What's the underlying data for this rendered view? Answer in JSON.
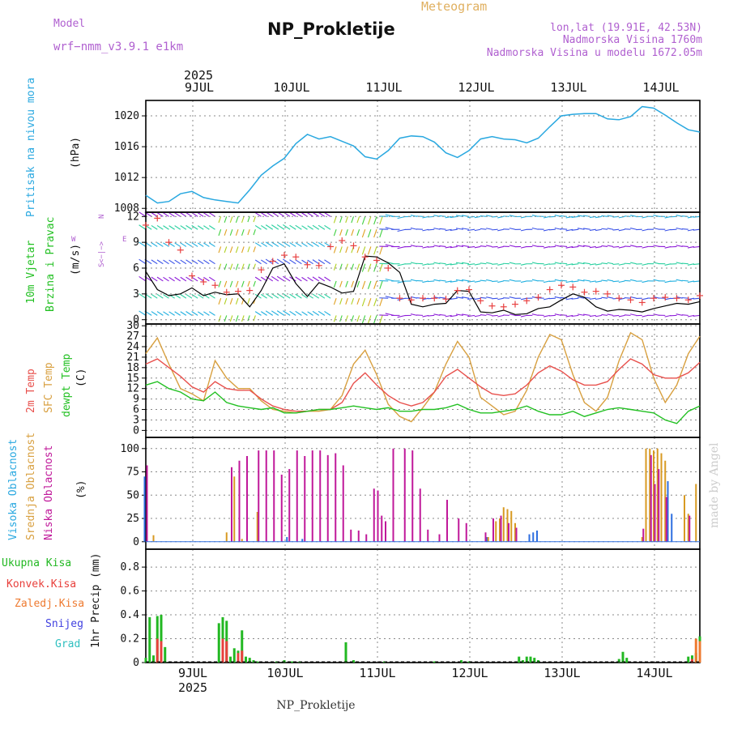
{
  "header": {
    "model_label": "Model",
    "model_name": "wrf−nmm_v3.9.1 e1km",
    "product": "Meteogram",
    "station": "NP_Prokletije",
    "lonlat": "lon,lat (19.91E, 42.53N)",
    "elevation": "Nadmorska Visina 1760m",
    "model_elevation": "Nadmorska Visina u modelu 1672.05m",
    "footer_station": "NP_Prokletije",
    "credit": "made by Angel"
  },
  "colors": {
    "pressure": "#29a8e0",
    "temp2m": "#e8504c",
    "sfc": "#d8a040",
    "dewpt": "#22c022",
    "high_cloud": "#2d6ee0",
    "mid_cloud": "#d89a22",
    "low_cloud": "#c0189a",
    "total_precip": "#22b822",
    "conv_precip": "#e8403c",
    "frozen_precip": "#ee7a30",
    "snow": "#4040e0",
    "graupel": "#30c0c0",
    "model_text": "#b060d0",
    "product_text": "#e0b060",
    "wind_gust_marker": "#e84040",
    "wind_speed_line": "#000000"
  },
  "time_axis": {
    "year_top": "2025",
    "year_bottom": "2025",
    "days": [
      "9JUL",
      "10JUL",
      "11JUL",
      "12JUL",
      "13JUL",
      "14JUL"
    ],
    "start": "8JUL 12UTC",
    "end": "14JUL 12UTC"
  },
  "panels": {
    "pressure": {
      "label": "Pritisak na nivou mora",
      "unit": "(hPa)",
      "ticks": [
        "1008",
        "1012",
        "1016",
        "1020"
      ]
    },
    "wind": {
      "label1": "10m Vjetar",
      "label2": "Brzina i Pravac",
      "unit": "(m/s)",
      "ticks": [
        "0",
        "3",
        "6",
        "9",
        "12"
      ],
      "compass": {
        "n": "N",
        "s": "S",
        "e": "E",
        "w": "W",
        "arrow": "<−|−>"
      }
    },
    "temperature": {
      "label1": "2m Temp",
      "label2": "SFC Temp",
      "label3": "dewpt Temp",
      "unit": "(C)",
      "ticks": [
        "0",
        "3",
        "6",
        "9",
        "12",
        "15",
        "18",
        "21",
        "24",
        "27",
        "30"
      ]
    },
    "cloud": {
      "label1": "Visoka Oblacnost",
      "label2": "Srednja Oblacnost",
      "label3": "Niska Oblacnost",
      "unit": "(%)",
      "ticks": [
        "0",
        "25",
        "50",
        "75",
        "100"
      ]
    },
    "precip": {
      "labels": [
        "Ukupna Kisa",
        "Konvek.Kisa",
        "Zaledj.Kisa",
        "Snijeg",
        "Grad"
      ],
      "unit": "1hr Precip (mm)",
      "ticks": [
        "0",
        "0.2",
        "0.4",
        "0.6",
        "0.8"
      ]
    }
  },
  "chart_data": [
    {
      "type": "line",
      "title": "Pritisak na nivou mora",
      "ylabel": "(hPa)",
      "x_hours": [
        0,
        3,
        6,
        9,
        12,
        15,
        18,
        21,
        24,
        27,
        30,
        33,
        36,
        39,
        42,
        45,
        48,
        51,
        54,
        57,
        60,
        63,
        66,
        69,
        72,
        75,
        78,
        81,
        84,
        87,
        90,
        93,
        96,
        99,
        102,
        105,
        108,
        111,
        114,
        117,
        120,
        123,
        126,
        129,
        132,
        135,
        138,
        141,
        144
      ],
      "series": [
        {
          "name": "Pritisak na nivou mora",
          "values": [
            1009.7,
            1008.7,
            1008.9,
            1009.9,
            1010.2,
            1009.4,
            1009.1,
            1008.9,
            1008.7,
            1010.4,
            1012.3,
            1013.5,
            1014.5,
            1016.4,
            1017.6,
            1017.0,
            1017.3,
            1016.7,
            1016.1,
            1014.7,
            1014.4,
            1015.5,
            1017.1,
            1017.4,
            1017.3,
            1016.6,
            1015.2,
            1014.6,
            1015.5,
            1017.0,
            1017.3,
            1017.0,
            1016.9,
            1016.5,
            1017.1,
            1018.6,
            1020.0,
            1020.2,
            1020.3,
            1020.3,
            1019.6,
            1019.5,
            1019.9,
            1021.2,
            1021.0,
            1020.1,
            1019.1,
            1018.2,
            1017.9
          ]
        }
      ],
      "ylim": [
        1007.5,
        1022
      ]
    },
    {
      "type": "line",
      "title": "10m Vjetar Brzina i Pravac",
      "ylabel": "(m/s)",
      "x_hours": [
        0,
        3,
        6,
        9,
        12,
        15,
        18,
        21,
        24,
        27,
        30,
        33,
        36,
        39,
        42,
        45,
        48,
        51,
        54,
        57,
        60,
        63,
        66,
        69,
        72,
        75,
        78,
        81,
        84,
        87,
        90,
        93,
        96,
        99,
        102,
        105,
        108,
        111,
        114,
        117,
        120,
        123,
        126,
        129,
        132,
        135,
        138,
        141,
        144
      ],
      "series": [
        {
          "name": "speed",
          "values": [
            5.6,
            3.5,
            2.8,
            3.0,
            3.7,
            2.8,
            3.2,
            2.9,
            3.0,
            1.5,
            3.4,
            6.0,
            6.5,
            4.2,
            2.7,
            4.3,
            3.8,
            3.1,
            3.3,
            7.4,
            7.3,
            6.6,
            5.5,
            1.8,
            1.5,
            1.8,
            1.9,
            3.4,
            3.3,
            0.9,
            0.8,
            1.1,
            0.6,
            0.7,
            1.3,
            1.5,
            2.3,
            3.0,
            2.6,
            1.5,
            1.0,
            1.2,
            1.1,
            0.9,
            1.3,
            1.6,
            1.9,
            1.8,
            2.1
          ]
        },
        {
          "name": "gust",
          "values": [
            11.0,
            11.8,
            9.0,
            8.1,
            5.1,
            4.4,
            4.0,
            3.2,
            3.3,
            3.4,
            5.8,
            6.8,
            7.5,
            7.3,
            6.4,
            6.3,
            8.5,
            9.2,
            8.6,
            7.3,
            6.9,
            6.0,
            2.5,
            2.3,
            2.5,
            2.5,
            2.4,
            3.4,
            3.5,
            2.2,
            1.6,
            1.5,
            1.8,
            2.2,
            2.6,
            3.5,
            4.0,
            3.8,
            3.2,
            3.3,
            3.0,
            2.5,
            2.3,
            2.0,
            2.5,
            2.6,
            2.5,
            2.3,
            2.8
          ]
        }
      ],
      "ylim": [
        -0.5,
        12.5
      ]
    },
    {
      "type": "line",
      "title": "2m Temp / SFC Temp / dewpt Temp",
      "ylabel": "(C)",
      "x_hours": [
        0,
        3,
        6,
        9,
        12,
        15,
        18,
        21,
        24,
        27,
        30,
        33,
        36,
        39,
        42,
        45,
        48,
        51,
        54,
        57,
        60,
        63,
        66,
        69,
        72,
        75,
        78,
        81,
        84,
        87,
        90,
        93,
        96,
        99,
        102,
        105,
        108,
        111,
        114,
        117,
        120,
        123,
        126,
        129,
        132,
        135,
        138,
        141,
        144
      ],
      "series": [
        {
          "name": "2m Temp",
          "values": [
            19,
            20.5,
            18,
            15.5,
            12.5,
            11,
            14,
            12,
            11.5,
            11.5,
            9,
            7,
            6,
            5.5,
            5.5,
            6,
            6,
            8,
            13.5,
            16.5,
            13,
            10,
            8,
            7,
            8,
            11,
            15.5,
            17.5,
            15,
            12.5,
            10.5,
            10,
            10.5,
            13,
            16.5,
            18.5,
            17,
            14.5,
            13,
            13,
            14,
            17.5,
            20.5,
            19,
            16,
            15,
            15,
            16.5,
            19.5
          ]
        },
        {
          "name": "SFC Temp",
          "values": [
            22,
            26.5,
            19,
            12,
            10.5,
            8.5,
            20,
            15,
            12,
            12,
            8.5,
            6,
            5.5,
            5,
            5.5,
            5.5,
            6,
            10,
            19,
            23,
            16,
            7.5,
            4,
            2.5,
            6.5,
            11,
            19,
            25.5,
            21,
            9.5,
            7,
            4.5,
            5.5,
            11.5,
            21,
            27.5,
            26,
            16,
            8,
            5.5,
            9.5,
            20,
            28,
            26,
            15,
            8,
            13,
            22,
            27
          ]
        },
        {
          "name": "dewpt Temp",
          "values": [
            13,
            14,
            12,
            11,
            9,
            8.5,
            11,
            8,
            7,
            6.5,
            6,
            6.5,
            5,
            5,
            5.5,
            6,
            6,
            6.5,
            7,
            6.5,
            6,
            6.5,
            5.5,
            5.5,
            6,
            6,
            6.5,
            7.5,
            6,
            5,
            5,
            5.5,
            6,
            7,
            5.5,
            4.5,
            4.5,
            5.5,
            4,
            5,
            6,
            6.5,
            6,
            5.5,
            5,
            3,
            2,
            5.5,
            7
          ]
        }
      ],
      "ylim": [
        -2,
        30.5
      ]
    },
    {
      "type": "bar",
      "title": "Oblacnost",
      "ylabel": "(%)",
      "series": [
        {
          "name": "Visoka Oblacnost",
          "hours": [
            0,
            37,
            41,
            89,
            100,
            101,
            102,
            136,
            137
          ],
          "values": [
            70,
            5,
            3,
            5,
            8,
            10,
            12,
            65,
            30
          ]
        },
        {
          "name": "Srednja Oblacnost",
          "hours": [
            2,
            21,
            23,
            25,
            29,
            89,
            91,
            92,
            93,
            94,
            95,
            96,
            129,
            130,
            131,
            132,
            133,
            134,
            135,
            140,
            141,
            143
          ],
          "values": [
            7,
            10,
            70,
            3,
            32,
            5,
            22,
            25,
            37,
            35,
            33,
            20,
            5,
            100,
            100,
            98,
            100,
            95,
            87,
            50,
            30,
            62
          ]
        },
        {
          "name": "Niska Oblacnost",
          "hours": [
            0,
            22,
            24,
            26,
            29,
            31,
            33,
            35,
            37,
            39,
            41,
            43,
            45,
            47,
            49,
            51,
            53,
            55,
            57,
            59,
            60,
            61,
            62,
            64,
            67,
            69,
            71,
            73,
            76,
            78,
            81,
            83,
            88,
            90,
            92,
            94,
            96,
            129,
            131,
            132,
            133,
            135,
            141
          ],
          "values": [
            82,
            80,
            87,
            92,
            98,
            98,
            98,
            72,
            78,
            98,
            92,
            98,
            98,
            93,
            95,
            82,
            13,
            12,
            8,
            57,
            55,
            28,
            22,
            100,
            100,
            98,
            57,
            13,
            8,
            45,
            25,
            20,
            10,
            25,
            28,
            20,
            15,
            14,
            93,
            62,
            78,
            48,
            28
          ]
        }
      ],
      "ylim": [
        0,
        100
      ]
    },
    {
      "type": "bar",
      "title": "1hr Precip",
      "ylabel": "1hr Precip (mm)",
      "series": [
        {
          "name": "Ukupna Kisa",
          "hours": [
            0,
            1,
            2,
            3,
            4,
            5,
            19,
            20,
            21,
            22,
            23,
            24,
            25,
            26,
            27,
            28,
            29,
            34,
            36,
            38,
            40,
            52,
            54,
            62,
            75,
            82,
            84,
            97,
            98,
            99,
            100,
            101,
            102,
            123,
            124,
            125,
            141,
            142,
            143,
            144
          ],
          "values": [
            0.04,
            0.38,
            0.06,
            0.39,
            0.4,
            0.13,
            0.33,
            0.38,
            0.35,
            0.05,
            0.12,
            0.1,
            0.27,
            0.05,
            0.04,
            0.02,
            0.01,
            0.01,
            0.02,
            0.01,
            0.01,
            0.17,
            0.02,
            0.01,
            0.01,
            0.02,
            0.01,
            0.05,
            0.02,
            0.05,
            0.05,
            0.04,
            0.02,
            0.03,
            0.09,
            0.04,
            0.05,
            0.06,
            0.08,
            0.22
          ]
        },
        {
          "name": "Konvek.Kisa",
          "hours": [
            3,
            4,
            20,
            21,
            24,
            25,
            142,
            144
          ],
          "values": [
            0.2,
            0.18,
            0.2,
            0.18,
            0.08,
            0.1,
            0.03,
            0.15
          ]
        },
        {
          "name": "Zaledj.Kisa",
          "hours": [
            143,
            144
          ],
          "values": [
            0.2,
            0.18
          ]
        }
      ],
      "ylim": [
        0,
        0.95
      ]
    }
  ]
}
